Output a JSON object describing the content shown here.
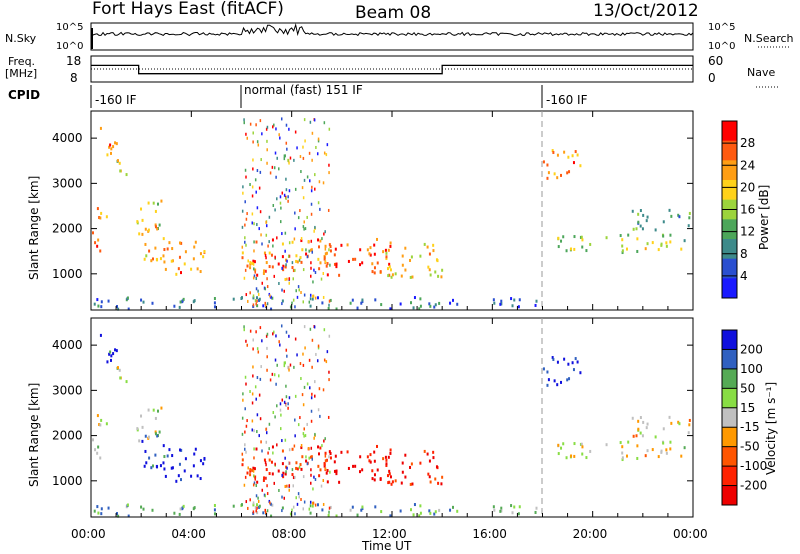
{
  "title": {
    "station": "Fort Hays East (fitACF)",
    "beam": "Beam 08",
    "date": "13/Oct/2012"
  },
  "colors": {
    "power_scale": [
      "#1a1aff",
      "#2a4fd0",
      "#3d8a8a",
      "#4ca65a",
      "#9cd43c",
      "#ffd21a",
      "#ff9e14",
      "#ff5a10",
      "#ff0000"
    ],
    "velocity_scale": [
      "#1010dd",
      "#3060c0",
      "#55aa55",
      "#88dd44",
      "#c0c0c0",
      "#ff9900",
      "#ff5500",
      "#ff2200",
      "#ee0000"
    ]
  },
  "chart_data": [
    {
      "type": "line",
      "name": "nsky-panel",
      "ylabel": "N.Sky",
      "ytick_labels": [
        "10^5",
        "10^0"
      ],
      "right_ytick_labels": [
        "10^5",
        "10^0"
      ],
      "right_label": "N.Search",
      "x_range_hours": [
        0,
        24
      ]
    },
    {
      "type": "line",
      "name": "frequency-panel",
      "ylabel": "Freq.",
      "yunit": "[MHz]",
      "yticks": [
        "18",
        "8"
      ],
      "right_ytick_labels": [
        "60",
        "0"
      ],
      "right_label": "Nave",
      "freq_steps": [
        {
          "from": 0,
          "to": 1.9,
          "freq": 14.4
        },
        {
          "from": 1.9,
          "to": 14,
          "freq": 11.2
        },
        {
          "from": 14,
          "to": 24,
          "freq": 14.4
        }
      ]
    },
    {
      "type": "table",
      "name": "cpid-row",
      "label": "CPID",
      "modes": [
        {
          "start_hour": 0,
          "text": "-160 IF"
        },
        {
          "start_hour": 6,
          "text": "normal (fast) 151 IF"
        },
        {
          "start_hour": 18,
          "text": "-160 IF"
        }
      ]
    },
    {
      "type": "heatmap",
      "name": "power-panel",
      "ylabel": "Slant Range [km]",
      "yticks": [
        "1000",
        "2000",
        "3000",
        "4000"
      ],
      "ylim": [
        200,
        4600
      ],
      "xlim_hours": [
        0,
        24
      ],
      "colorbar_label": "Power [dB]",
      "colorbar_ticks": [
        "28",
        "24",
        "20",
        "16",
        "12",
        "8",
        "4"
      ]
    },
    {
      "type": "heatmap",
      "name": "velocity-panel",
      "ylabel": "Slant Range [km]",
      "yticks": [
        "1000",
        "2000",
        "3000",
        "4000"
      ],
      "ylim": [
        200,
        4600
      ],
      "xlim_hours": [
        0,
        24
      ],
      "colorbar_label": "Velocity [m s⁻¹]",
      "colorbar_ticks": [
        "200",
        "100",
        "50",
        "15",
        "-15",
        "-50",
        "-100",
        "-200"
      ]
    }
  ],
  "xaxis": {
    "tick_labels": [
      "00:00",
      "04:00",
      "08:00",
      "12:00",
      "16:00",
      "20:00",
      "00:00"
    ],
    "label": "Time UT"
  },
  "echo_regions": [
    {
      "t0": 0.0,
      "t1": 0.5,
      "r0": 1500,
      "r1": 2000,
      "pow": 0.85,
      "vel": 0.45
    },
    {
      "t0": 0.2,
      "t1": 0.9,
      "r0": 2100,
      "r1": 2500,
      "pow": 0.7,
      "vel": 0.5
    },
    {
      "t0": 0.3,
      "t1": 1.0,
      "r0": 3600,
      "r1": 4300,
      "pow": 0.8,
      "vel": 0.15
    },
    {
      "t0": 0.9,
      "t1": 1.4,
      "r0": 3000,
      "r1": 3700,
      "pow": 0.55,
      "vel": 0.45
    },
    {
      "t0": 1.8,
      "t1": 2.8,
      "r0": 1900,
      "r1": 2700,
      "pow": 0.55,
      "vel": 0.45
    },
    {
      "t0": 2.0,
      "t1": 3.2,
      "r0": 1300,
      "r1": 2100,
      "pow": 0.7,
      "vel": 0.1
    },
    {
      "t0": 2.8,
      "t1": 4.5,
      "r0": 1000,
      "r1": 1800,
      "pow": 0.75,
      "vel": 0.05
    },
    {
      "t0": 6.0,
      "t1": 9.5,
      "r0": 1000,
      "r1": 1800,
      "pow": 0.8,
      "vel": 0.85
    },
    {
      "t0": 9.0,
      "t1": 12.0,
      "r0": 1000,
      "r1": 1800,
      "pow": 0.85,
      "vel": 0.95
    },
    {
      "t0": 11.5,
      "t1": 14.0,
      "r0": 900,
      "r1": 1700,
      "pow": 0.65,
      "vel": 0.9
    },
    {
      "t0": 14.0,
      "t1": 18.0,
      "r0": 300,
      "r1": 500,
      "pow": 0.15,
      "vel": 0.35
    },
    {
      "t0": 0.0,
      "t1": 14.0,
      "r0": 250,
      "r1": 520,
      "pow": 0.25,
      "vel": 0.3
    },
    {
      "t0": 18.0,
      "t1": 19.5,
      "r0": 3100,
      "r1": 3800,
      "pow": 0.75,
      "vel": 0.05
    },
    {
      "t0": 18.5,
      "t1": 24.0,
      "r0": 1500,
      "r1": 1900,
      "pow": 0.5,
      "vel": 0.5
    },
    {
      "t0": 21.5,
      "t1": 24.0,
      "r0": 2000,
      "r1": 2500,
      "pow": 0.35,
      "vel": 0.55
    }
  ]
}
